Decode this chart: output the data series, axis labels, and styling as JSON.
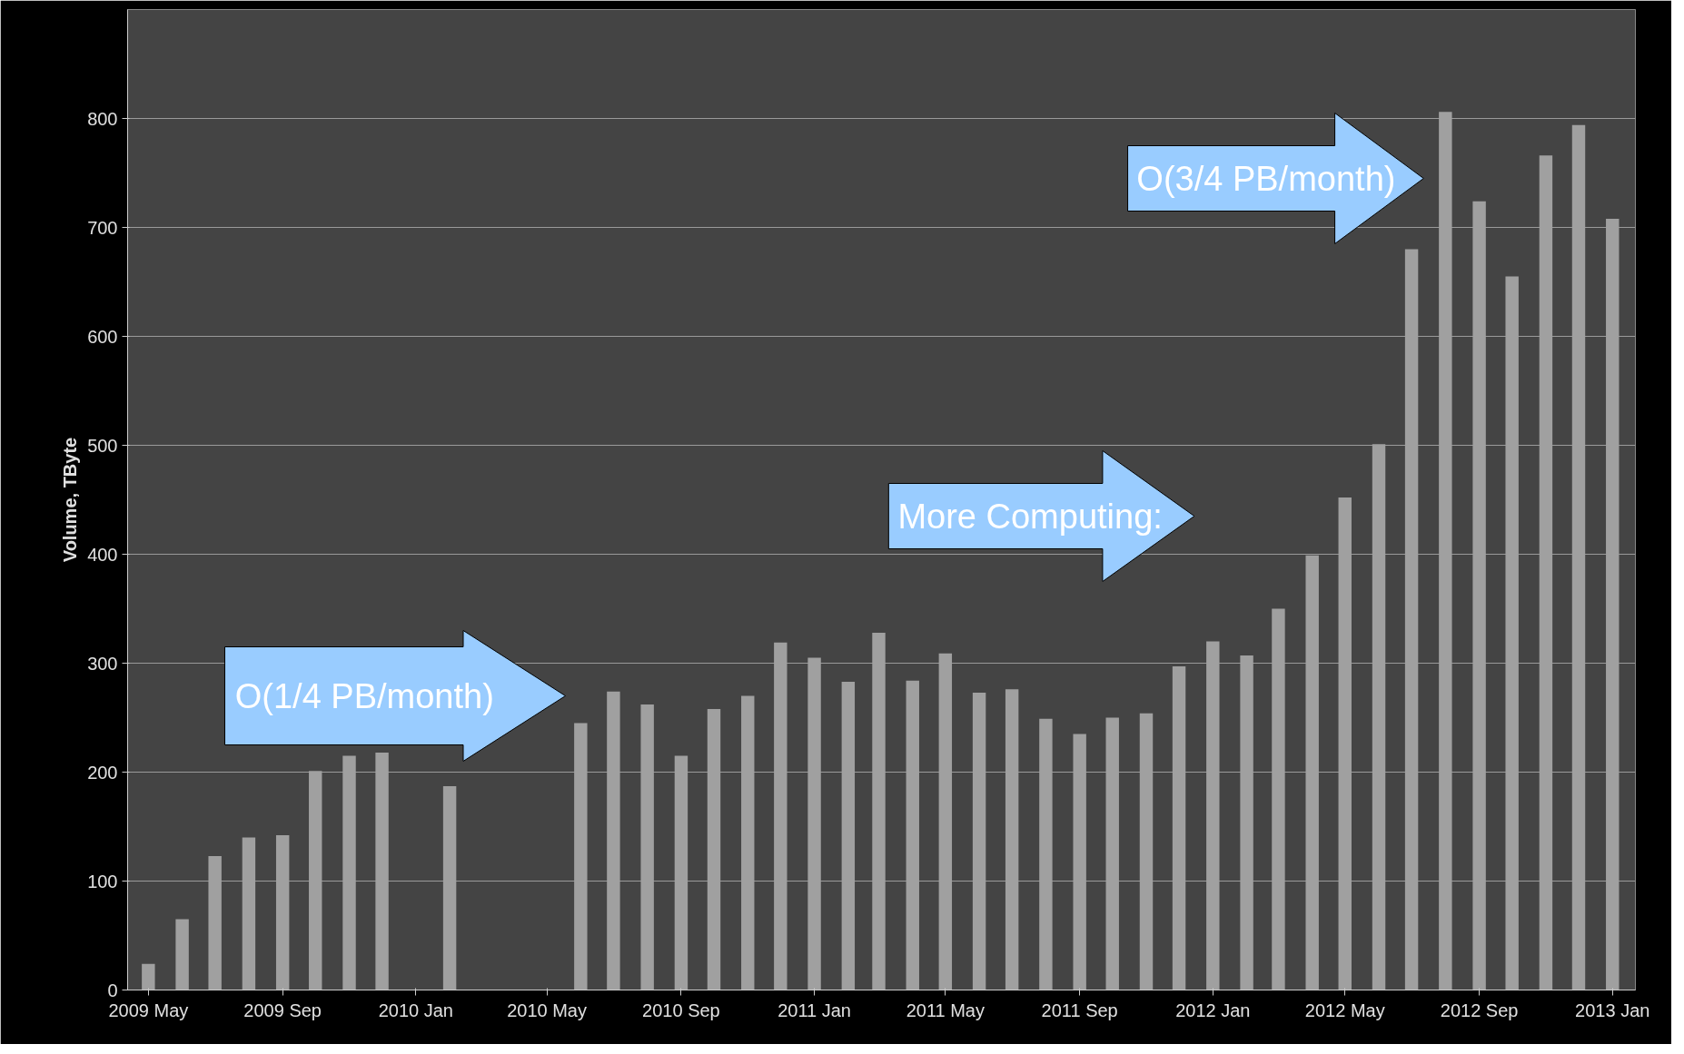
{
  "chart_data": {
    "type": "bar",
    "ylabel": "Volume, TByte",
    "x": [
      "2009-05",
      "2009-06",
      "2009-07",
      "2009-08",
      "2009-09",
      "2009-10",
      "2009-11",
      "2009-12",
      "2010-01",
      "2010-02",
      "2010-03",
      "2010-04",
      "2010-05",
      "2010-06",
      "2010-07",
      "2010-08",
      "2010-09",
      "2010-10",
      "2010-11",
      "2010-12",
      "2011-01",
      "2011-02",
      "2011-03",
      "2011-04",
      "2011-05",
      "2011-06",
      "2011-07",
      "2011-08",
      "2011-09",
      "2011-10",
      "2011-11",
      "2011-12",
      "2012-01",
      "2012-02",
      "2012-03",
      "2012-04",
      "2012-05",
      "2012-06",
      "2012-07",
      "2012-08",
      "2012-09",
      "2012-10",
      "2012-11",
      "2012-12",
      "2013-01"
    ],
    "series": [
      {
        "color": "#a0a0a0",
        "values": [
          24,
          65,
          123,
          140,
          142,
          201,
          215,
          218,
          null,
          187,
          null,
          null,
          null,
          245,
          274,
          262,
          215,
          258,
          270,
          319,
          305,
          283,
          328,
          284,
          309,
          273,
          276,
          249,
          235,
          250,
          254,
          297,
          320,
          307,
          350,
          399,
          452,
          501,
          680,
          806,
          724,
          655,
          766,
          794,
          708
        ]
      }
    ],
    "xlim": [
      "2009-04-12",
      "2013-01-22"
    ],
    "xticks": [
      {
        "value": "2009-05",
        "label": "2009 May"
      },
      {
        "value": "2009-09",
        "label": "2009 Sep"
      },
      {
        "value": "2010-01",
        "label": "2010 Jan"
      },
      {
        "value": "2010-05",
        "label": "2010 May"
      },
      {
        "value": "2010-09",
        "label": "2010 Sep"
      },
      {
        "value": "2011-01",
        "label": "2011 Jan"
      },
      {
        "value": "2011-05",
        "label": "2011 May"
      },
      {
        "value": "2011-09",
        "label": "2011 Sep"
      },
      {
        "value": "2012-01",
        "label": "2012 Jan"
      },
      {
        "value": "2012-05",
        "label": "2012 May"
      },
      {
        "value": "2012-09",
        "label": "2012 Sep"
      },
      {
        "value": "2013-01",
        "label": "2013 Jan"
      }
    ],
    "ylim": [
      0,
      900
    ],
    "yticks": [
      0,
      100,
      200,
      300,
      400,
      500,
      600,
      700,
      800
    ],
    "grid": "y",
    "annotations": [
      "O(1/4 PB/month)",
      "More Computing:",
      "O(3/4 PB/month)"
    ]
  }
}
